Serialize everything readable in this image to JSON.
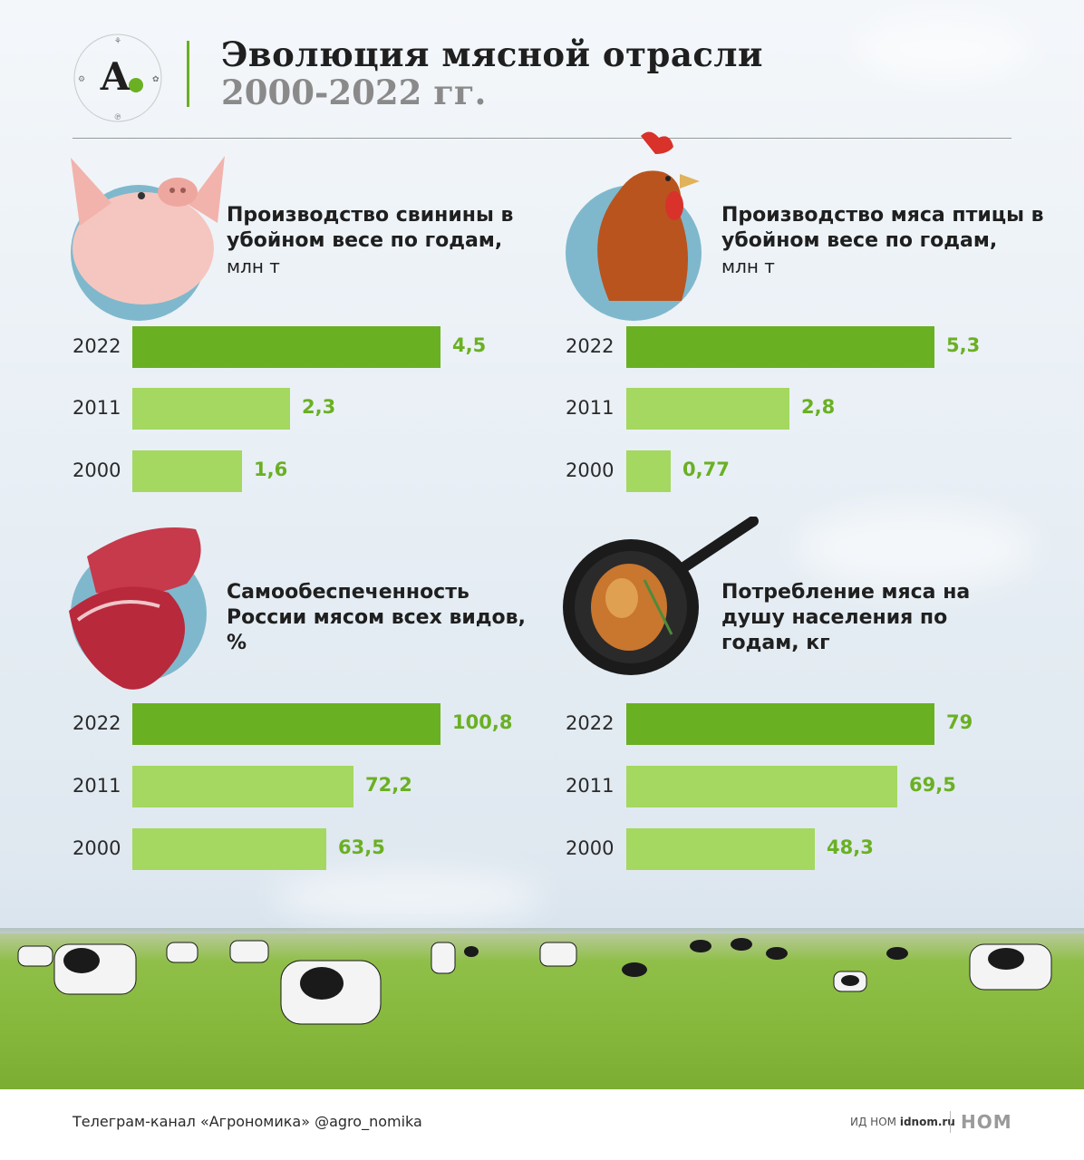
{
  "header": {
    "title": "Эволюция мясной отрасли",
    "subtitle": "2000-2022 гг."
  },
  "logo": {
    "letter": "А.",
    "accent": "#6ab023"
  },
  "colors": {
    "bar_latest": "#6ab023",
    "bar_other": "#a4d860",
    "value_text": "#6ab023",
    "icon_circle": "#7fb8cc"
  },
  "chart_data": [
    {
      "type": "bar",
      "title": "Производство свинины в убойном весе по годам,",
      "unit": "млн т",
      "icon": "pig-icon",
      "categories": [
        "2022",
        "2011",
        "2000"
      ],
      "values": [
        4.5,
        2.3,
        1.6
      ],
      "value_labels": [
        "4,5",
        "2,3",
        "1,6"
      ]
    },
    {
      "type": "bar",
      "title": "Производство мяса птицы в убойном весе по годам,",
      "unit": "млн т",
      "icon": "chicken-icon",
      "categories": [
        "2022",
        "2011",
        "2000"
      ],
      "values": [
        5.3,
        2.8,
        0.77
      ],
      "value_labels": [
        "5,3",
        "2,8",
        "0,77"
      ]
    },
    {
      "type": "bar",
      "title": "Самообеспеченность России мясом всех видов, %",
      "unit": "",
      "icon": "raw-meat-icon",
      "categories": [
        "2022",
        "2011",
        "2000"
      ],
      "values": [
        100.8,
        72.2,
        63.5
      ],
      "value_labels": [
        "100,8",
        "72,2",
        "63,5"
      ]
    },
    {
      "type": "bar",
      "title": "Потребление мяса на душу населения по годам, кг",
      "unit": "",
      "icon": "frying-pan-icon",
      "categories": [
        "2022",
        "2011",
        "2000"
      ],
      "values": [
        79,
        69.5,
        48.3
      ],
      "value_labels": [
        "79",
        "69,5",
        "48,3"
      ]
    }
  ],
  "footer": {
    "telegram": "Телеграм-канал «Агрономика» @agro_nomika",
    "publisher_prefix": "ИД НОМ",
    "publisher_site": "idnom.ru",
    "brand": "НОМ"
  }
}
